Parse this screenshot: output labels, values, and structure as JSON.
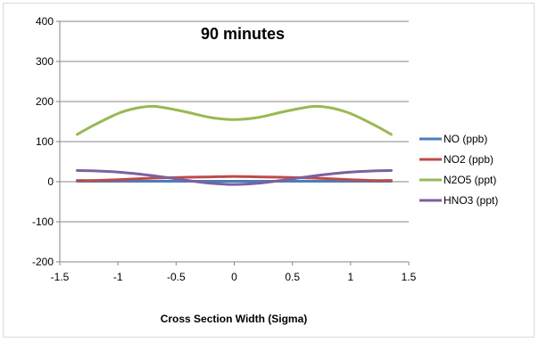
{
  "chart_data": {
    "type": "line",
    "title": "90 minutes",
    "xlabel": "Cross Section Width (Sigma)",
    "ylabel": "",
    "xlim": [
      -1.5,
      1.5
    ],
    "ylim": [
      -200,
      400
    ],
    "xticks": [
      "-1.5",
      "-1",
      "-0.5",
      "0",
      "0.5",
      "1",
      "1.5"
    ],
    "yticks": [
      "400",
      "300",
      "200",
      "100",
      "0",
      "-100",
      "-200"
    ],
    "grid": "horizontal",
    "legend_position": "right",
    "x": [
      -1.35,
      -1.2,
      -1.0,
      -0.85,
      -0.7,
      -0.55,
      -0.4,
      -0.2,
      0,
      0.2,
      0.4,
      0.55,
      0.7,
      0.85,
      1.0,
      1.2,
      1.35
    ],
    "series": [
      {
        "name": "NO (ppb)",
        "color": "#4a7ebb",
        "values": [
          1,
          1,
          1,
          1,
          1,
          1,
          1,
          1,
          1,
          1,
          1,
          1,
          1,
          1,
          1,
          1,
          1
        ]
      },
      {
        "name": "NO2 (ppb)",
        "color": "#be4b48",
        "values": [
          3,
          3,
          5,
          7,
          9,
          10,
          11,
          12,
          13,
          12,
          11,
          10,
          9,
          7,
          5,
          3,
          3
        ]
      },
      {
        "name": "N2O5 (ppt)",
        "color": "#98b954",
        "values": [
          118,
          142,
          170,
          183,
          188,
          182,
          173,
          160,
          155,
          160,
          173,
          182,
          188,
          183,
          170,
          142,
          118
        ]
      },
      {
        "name": "HNO3 (ppt)",
        "color": "#7d60a0",
        "values": [
          28,
          27,
          24,
          20,
          15,
          9,
          3,
          -4,
          -7,
          -4,
          3,
          9,
          15,
          20,
          24,
          27,
          28
        ]
      }
    ]
  }
}
